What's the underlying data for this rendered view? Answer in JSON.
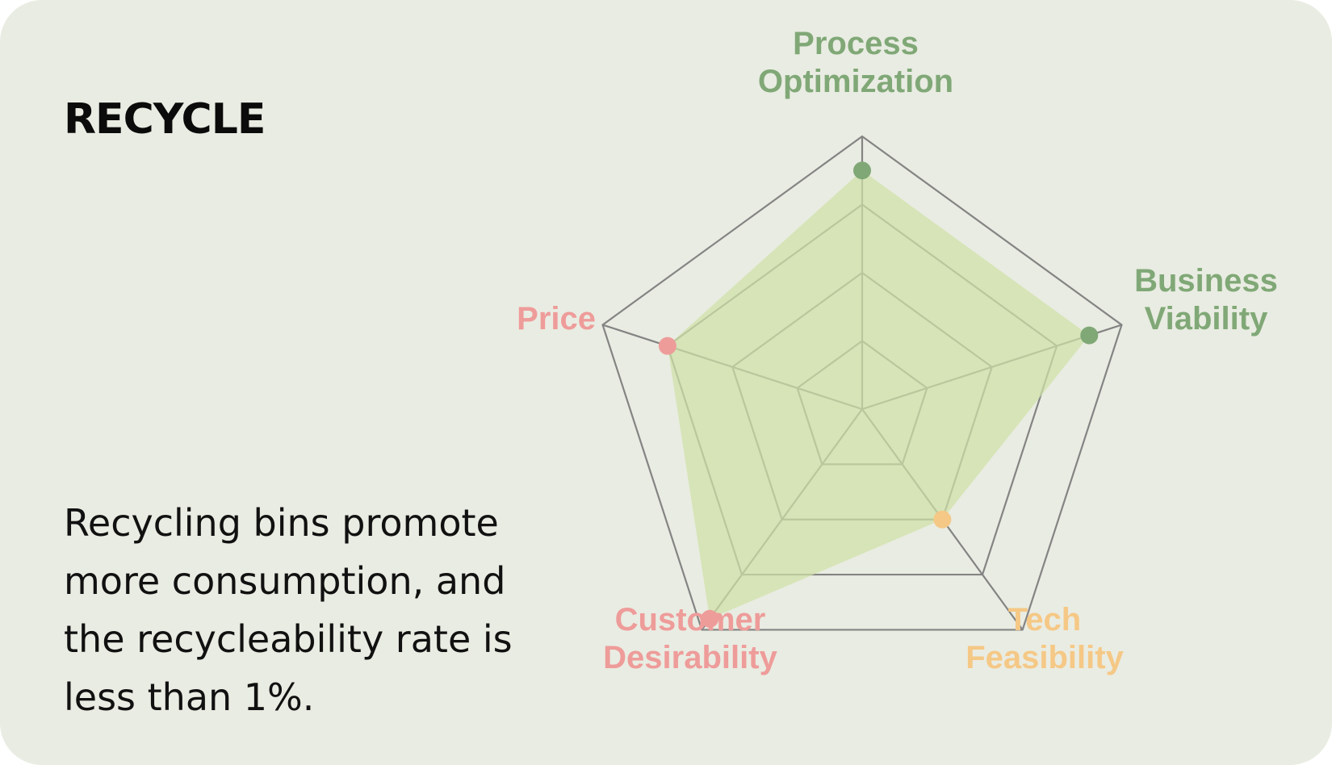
{
  "card": {
    "title": "RECYCLE",
    "description": "Recycling bins promote more consumption, and the recycleability rate is less than 1%."
  },
  "colors": {
    "background": "#e9ece2",
    "grid": "#848484",
    "area_fill": "#cfe0a6",
    "green": "#80a877",
    "red": "#ee9c9a",
    "orange": "#f5c886"
  },
  "chart_data": {
    "type": "radar",
    "title": "",
    "axes": [
      {
        "label_lines": [
          "Process",
          "Optimization"
        ],
        "color": "#80a877",
        "value": 3.5
      },
      {
        "label_lines": [
          "Business",
          "Viability"
        ],
        "color": "#80a877",
        "value": 3.5
      },
      {
        "label_lines": [
          "Tech",
          "Feasibility"
        ],
        "color": "#f5c886",
        "value": 2.0
      },
      {
        "label_lines": [
          "Customer",
          "Desirability"
        ],
        "color": "#ee9c9a",
        "value": 3.8
      },
      {
        "label_lines": [
          "Price"
        ],
        "color": "#ee9c9a",
        "value": 3.0
      }
    ],
    "range": [
      0,
      4
    ],
    "rings": 4,
    "grid": true,
    "legend": "none"
  }
}
